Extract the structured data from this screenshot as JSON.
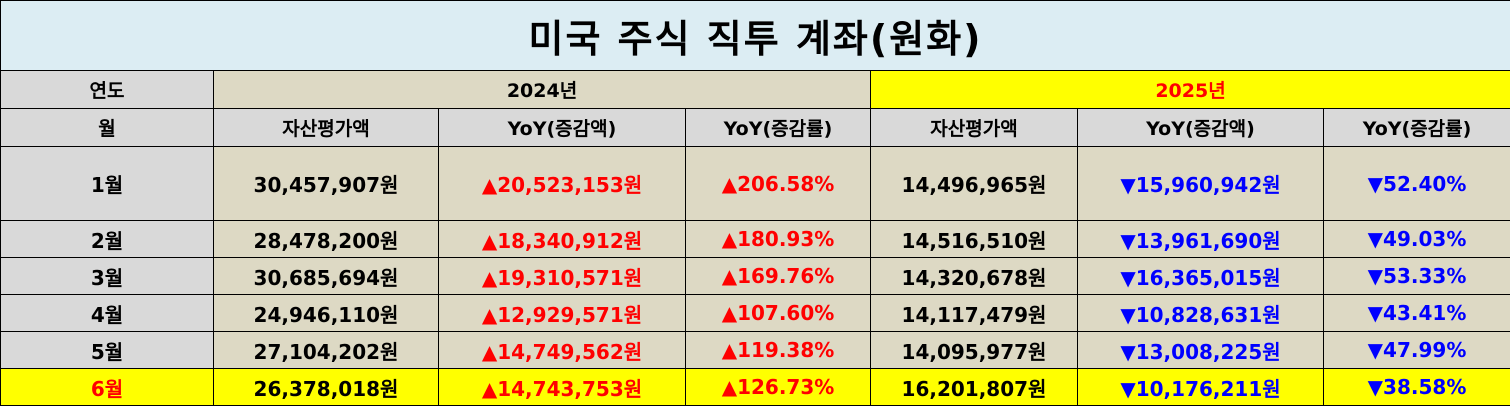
{
  "title": "미국 주식 직투 계좌(원화)",
  "header": {
    "year_label": "연도",
    "years": [
      "2024년",
      "2025년"
    ],
    "month_label": "월",
    "columns": [
      "자산평가액",
      "YoY(증감액)",
      "YoY(증감률)",
      "자산평가액",
      "YoY(증감액)",
      "YoY(증감률)"
    ]
  },
  "rows": [
    {
      "month": "1월",
      "cells": [
        "30,457,907원",
        "▲20,523,153원",
        "▲206.58%",
        "14,496,965원",
        "▼15,960,942원",
        "▼52.40%"
      ]
    },
    {
      "month": "2월",
      "cells": [
        "28,478,200원",
        "▲18,340,912원",
        "▲180.93%",
        "14,516,510원",
        "▼13,961,690원",
        "▼49.03%"
      ]
    },
    {
      "month": "3월",
      "cells": [
        "30,685,694원",
        "▲19,310,571원",
        "▲169.76%",
        "14,320,678원",
        "▼16,365,015원",
        "▼53.33%"
      ]
    },
    {
      "month": "4월",
      "cells": [
        "24,946,110원",
        "▲12,929,571원",
        "▲107.60%",
        "14,117,479원",
        "▼10,828,631원",
        "▼43.41%"
      ]
    },
    {
      "month": "5월",
      "cells": [
        "27,104,202원",
        "▲14,749,562원",
        "▲119.38%",
        "14,095,977원",
        "▼13,008,225원",
        "▼47.99%"
      ]
    },
    {
      "month": "6월",
      "cells": [
        "26,378,018원",
        "▲14,743,753원",
        "▲126.73%",
        "16,201,807원",
        "▼10,176,211원",
        "▼38.58%"
      ]
    }
  ]
}
